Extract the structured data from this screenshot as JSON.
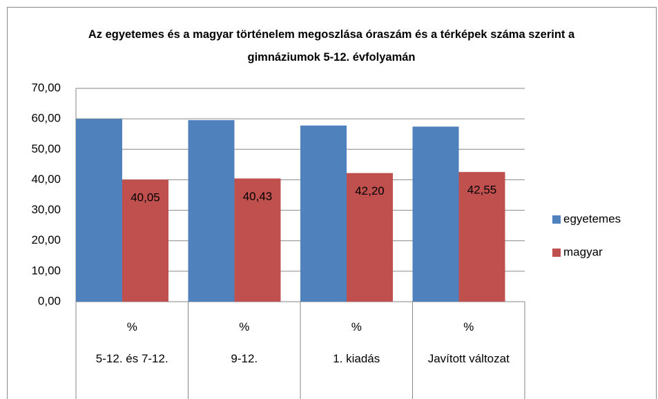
{
  "chart_data": {
    "type": "bar",
    "title": "Az egyetemes és a magyar történelem megoszlása óraszám és a térképek száma szerint a gimnáziumok 5-12. évfolyamán",
    "categories": [
      "5-12. és 7-12.",
      "9-12.",
      "1. kiadás",
      "Javított változat"
    ],
    "category_sublabels": [
      "%",
      "%",
      "%",
      "%"
    ],
    "series": [
      {
        "name": "egyetemes",
        "color": "#4f81bd",
        "values": [
          59.95,
          59.57,
          57.8,
          57.45
        ]
      },
      {
        "name": "magyar",
        "color": "#c0504d",
        "values": [
          40.05,
          40.43,
          42.2,
          42.55
        ],
        "value_labels": [
          "40,05",
          "40,43",
          "42,20",
          "42,55"
        ]
      }
    ],
    "ylim": [
      0,
      70
    ],
    "yticks": [
      {
        "value": 0,
        "label": "0,00"
      },
      {
        "value": 10,
        "label": "10,00"
      },
      {
        "value": 20,
        "label": "20,00"
      },
      {
        "value": 30,
        "label": "30,00"
      },
      {
        "value": 40,
        "label": "40,00"
      },
      {
        "value": 50,
        "label": "50,00"
      },
      {
        "value": 60,
        "label": "60,00"
      },
      {
        "value": 70,
        "label": "70,00"
      }
    ],
    "grid": true,
    "legend": "right"
  }
}
